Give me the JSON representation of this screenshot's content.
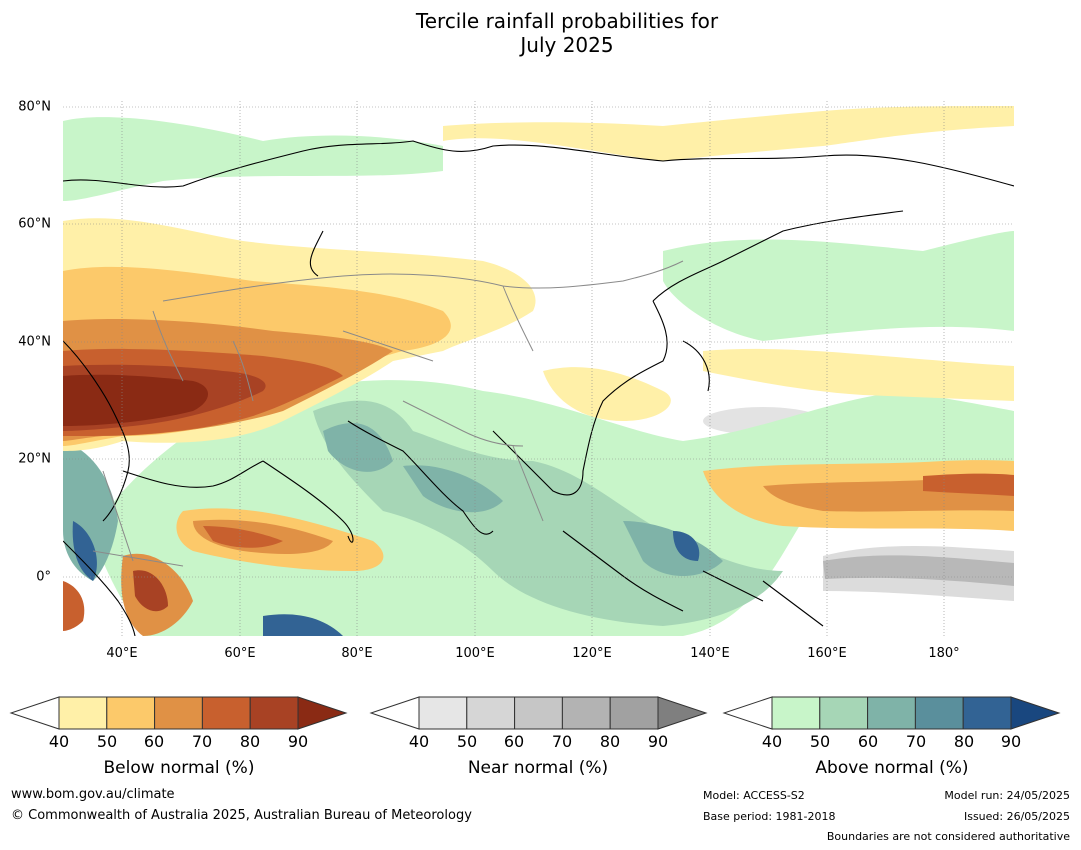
{
  "title_line1": "Tercile rainfall probabilities for",
  "title_line2": "July 2025",
  "lat_labels": [
    "80°N",
    "60°N",
    "40°N",
    "20°N",
    "0°"
  ],
  "lon_labels": [
    "40°E",
    "60°E",
    "80°E",
    "100°E",
    "120°E",
    "140°E",
    "160°E",
    "180°"
  ],
  "legends": [
    {
      "name": "Below normal (%)",
      "ticks": [
        "40",
        "50",
        "60",
        "70",
        "80",
        "90"
      ],
      "colors": [
        "#fff0a8",
        "#fcc96a",
        "#e09145",
        "#c8602e",
        "#a84224",
        "#8a2a14"
      ]
    },
    {
      "name": "Near normal (%)",
      "ticks": [
        "40",
        "50",
        "60",
        "70",
        "80",
        "90"
      ],
      "colors": [
        "#e6e6e6",
        "#d6d6d6",
        "#c6c6c6",
        "#b3b3b3",
        "#a1a1a1",
        "#7f7f7f"
      ]
    },
    {
      "name": "Above normal (%)",
      "ticks": [
        "40",
        "50",
        "60",
        "70",
        "80",
        "90"
      ],
      "colors": [
        "#c8f5c9",
        "#a6d6b6",
        "#7fb3a8",
        "#5a8f9c",
        "#326394",
        "#19477f"
      ]
    }
  ],
  "footer": {
    "website": "www.bom.gov.au/climate",
    "copyright": "© Commonwealth of Australia 2025, Australian Bureau of Meteorology",
    "model": "Model: ACCESS-S2",
    "base_period": "Base period: 1981-2018",
    "model_run": "Model run: 24/05/2025",
    "issued": "Issued: 26/05/2025",
    "boundaries": "Boundaries are not considered authoritative"
  }
}
